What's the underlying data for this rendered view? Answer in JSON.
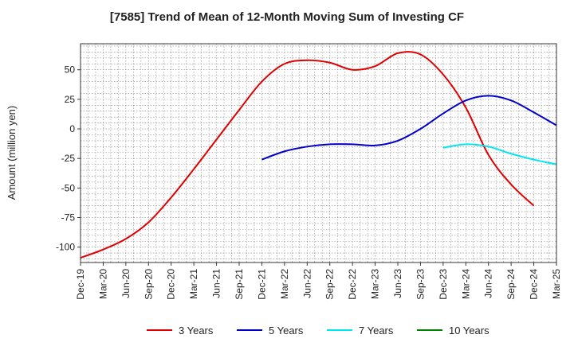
{
  "chart_data": {
    "type": "line",
    "title": "[7585]  Trend of Mean of 12-Month Moving Sum of Investing CF",
    "xlabel": "",
    "ylabel": "Amount (million yen)",
    "ylim": [
      -113,
      72
    ],
    "y_ticks": [
      50,
      25,
      0,
      -25,
      -50,
      -75,
      -100
    ],
    "y_tick_labels": [
      "50",
      "25",
      "0",
      "-25",
      "-50",
      "-75",
      "-100"
    ],
    "x_tick_labels": [
      "Dec-19",
      "Mar-20",
      "Jun-20",
      "Sep-20",
      "Dec-20",
      "Mar-21",
      "Jun-21",
      "Sep-21",
      "Dec-21",
      "Mar-22",
      "Jun-22",
      "Sep-22",
      "Dec-22",
      "Mar-23",
      "Jun-23",
      "Sep-23",
      "Dec-23",
      "Mar-24",
      "Jun-24",
      "Sep-24",
      "Dec-24",
      "Mar-25"
    ],
    "grid": true,
    "legend_position": "bottom",
    "series": [
      {
        "name": "3 Years",
        "color": "#e00000",
        "start_index": 0,
        "values": [
          -109,
          -102,
          -93,
          -79,
          -58,
          -34,
          -9,
          16,
          40,
          55,
          58,
          56,
          50,
          53,
          64,
          63,
          46,
          18,
          -22,
          -47,
          -65
        ]
      },
      {
        "name": "5 Years",
        "color": "#0000cc",
        "start_index": 8,
        "values": [
          -26,
          -19,
          -15,
          -13,
          -13,
          -14,
          -10,
          0,
          13,
          24,
          28,
          24,
          14,
          3
        ]
      },
      {
        "name": "7 Years",
        "color": "#00e5ee",
        "start_index": 16,
        "values": [
          -16,
          -13,
          -15,
          -21,
          -26,
          -30
        ]
      },
      {
        "name": "10 Years",
        "color": "#008000",
        "start_index": 0,
        "values": []
      }
    ]
  }
}
